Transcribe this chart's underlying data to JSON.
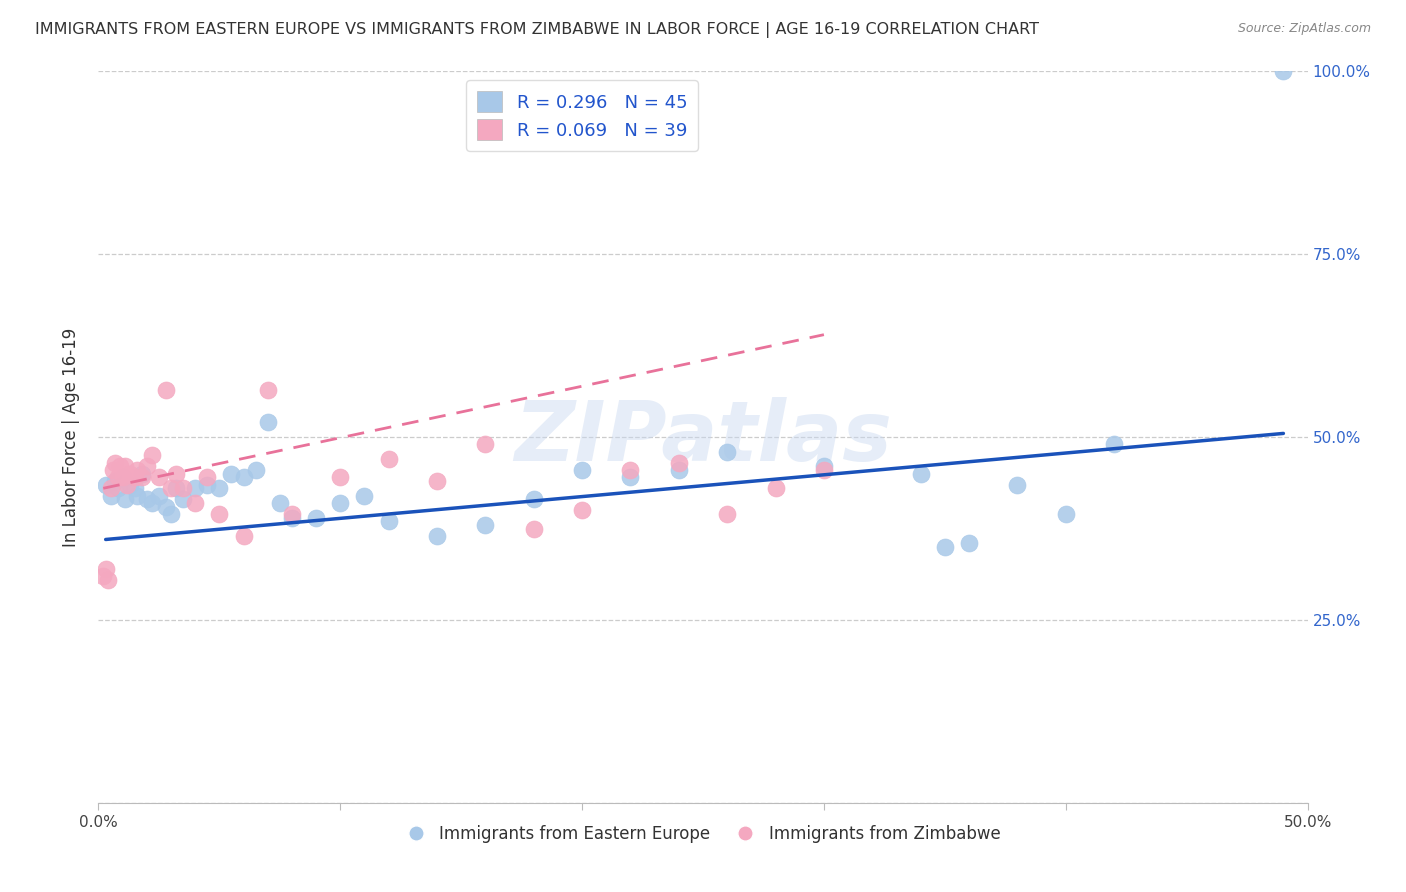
{
  "title": "IMMIGRANTS FROM EASTERN EUROPE VS IMMIGRANTS FROM ZIMBABWE IN LABOR FORCE | AGE 16-19 CORRELATION CHART",
  "source": "Source: ZipAtlas.com",
  "ylabel": "In Labor Force | Age 16-19",
  "y_ticks": [
    0.0,
    0.25,
    0.5,
    0.75,
    1.0
  ],
  "y_tick_labels_right": [
    "",
    "25.0%",
    "50.0%",
    "75.0%",
    "100.0%"
  ],
  "xlim": [
    0.0,
    0.5
  ],
  "ylim": [
    0.0,
    1.0
  ],
  "blue_R": 0.296,
  "blue_N": 45,
  "pink_R": 0.069,
  "pink_N": 39,
  "blue_color": "#a8c8e8",
  "pink_color": "#f4a8c0",
  "blue_line_color": "#1a52ba",
  "pink_line_color": "#e8729a",
  "watermark": "ZIPatlas",
  "legend_label_blue": "Immigrants from Eastern Europe",
  "legend_label_pink": "Immigrants from Zimbabwe",
  "blue_x": [
    0.003,
    0.005,
    0.007,
    0.008,
    0.01,
    0.011,
    0.013,
    0.015,
    0.016,
    0.018,
    0.02,
    0.022,
    0.025,
    0.028,
    0.03,
    0.032,
    0.035,
    0.04,
    0.045,
    0.05,
    0.055,
    0.06,
    0.065,
    0.07,
    0.075,
    0.08,
    0.09,
    0.1,
    0.11,
    0.12,
    0.14,
    0.16,
    0.18,
    0.2,
    0.22,
    0.24,
    0.26,
    0.3,
    0.34,
    0.38,
    0.4,
    0.42,
    0.35,
    0.36,
    0.49
  ],
  "blue_y": [
    0.435,
    0.42,
    0.44,
    0.43,
    0.445,
    0.415,
    0.435,
    0.43,
    0.42,
    0.45,
    0.415,
    0.41,
    0.42,
    0.405,
    0.395,
    0.43,
    0.415,
    0.43,
    0.435,
    0.43,
    0.45,
    0.445,
    0.455,
    0.52,
    0.41,
    0.39,
    0.39,
    0.41,
    0.42,
    0.385,
    0.365,
    0.38,
    0.415,
    0.455,
    0.445,
    0.455,
    0.48,
    0.46,
    0.45,
    0.435,
    0.395,
    0.49,
    0.35,
    0.355,
    1.0
  ],
  "pink_x": [
    0.002,
    0.003,
    0.004,
    0.005,
    0.006,
    0.007,
    0.008,
    0.009,
    0.01,
    0.011,
    0.012,
    0.013,
    0.015,
    0.016,
    0.018,
    0.02,
    0.022,
    0.025,
    0.028,
    0.03,
    0.032,
    0.035,
    0.04,
    0.045,
    0.05,
    0.06,
    0.07,
    0.08,
    0.1,
    0.12,
    0.14,
    0.16,
    0.18,
    0.2,
    0.22,
    0.24,
    0.26,
    0.28,
    0.3
  ],
  "pink_y": [
    0.31,
    0.32,
    0.305,
    0.43,
    0.455,
    0.465,
    0.445,
    0.46,
    0.445,
    0.46,
    0.435,
    0.45,
    0.445,
    0.455,
    0.445,
    0.46,
    0.475,
    0.445,
    0.565,
    0.43,
    0.45,
    0.43,
    0.41,
    0.445,
    0.395,
    0.365,
    0.565,
    0.395,
    0.445,
    0.47,
    0.44,
    0.49,
    0.375,
    0.4,
    0.455,
    0.465,
    0.395,
    0.43,
    0.455
  ],
  "blue_line_x": [
    0.003,
    0.49
  ],
  "blue_line_y": [
    0.36,
    0.505
  ],
  "pink_line_x": [
    0.002,
    0.3
  ],
  "pink_line_y": [
    0.43,
    0.64
  ]
}
